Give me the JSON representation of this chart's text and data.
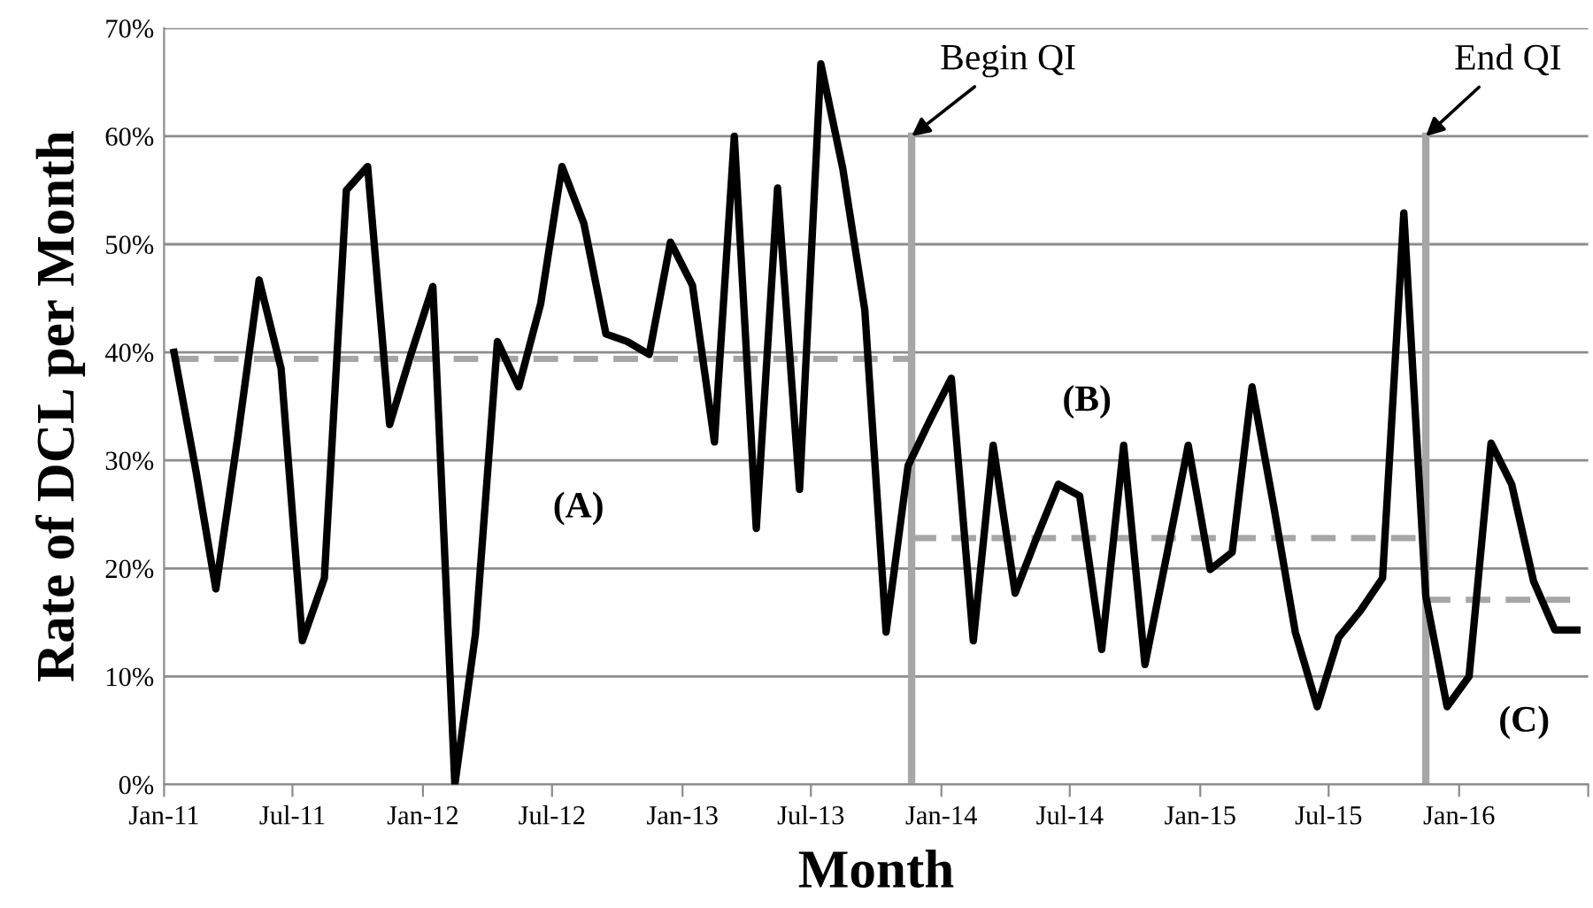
{
  "chart_data": {
    "type": "line",
    "xlabel": "Month",
    "ylabel": "Rate of DCL per Month",
    "xlim": [
      "2011-01-01",
      "2016-07-01"
    ],
    "ylim": [
      0,
      70
    ],
    "xticks": [
      {
        "value": "2011-01-01",
        "label": "Jan-11"
      },
      {
        "value": "2011-07-01",
        "label": "Jul-11"
      },
      {
        "value": "2012-01-01",
        "label": "Jan-12"
      },
      {
        "value": "2012-07-01",
        "label": "Jul-12"
      },
      {
        "value": "2013-01-01",
        "label": "Jan-13"
      },
      {
        "value": "2013-07-01",
        "label": "Jul-13"
      },
      {
        "value": "2014-01-01",
        "label": "Jan-14"
      },
      {
        "value": "2014-07-01",
        "label": "Jul-14"
      },
      {
        "value": "2015-01-01",
        "label": "Jan-15"
      },
      {
        "value": "2015-07-01",
        "label": "Jul-15"
      },
      {
        "value": "2016-01-01",
        "label": "Jan-16"
      },
      {
        "value": "2016-07-01",
        "label": null
      }
    ],
    "yticks": [
      {
        "value": 0,
        "label": "0%"
      },
      {
        "value": 10,
        "label": "10%"
      },
      {
        "value": 20,
        "label": "20%"
      },
      {
        "value": 30,
        "label": "30%"
      },
      {
        "value": 40,
        "label": "40%"
      },
      {
        "value": 50,
        "label": "50%"
      },
      {
        "value": 60,
        "label": "60%"
      },
      {
        "value": 70,
        "label": "70%"
      }
    ],
    "grid": "y",
    "legend": false,
    "marker": "none",
    "series": [
      {
        "color": "#000000",
        "line_style": "solid",
        "x": [
          "2011-01-15",
          "2011-02-15",
          "2011-03-15",
          "2011-04-15",
          "2011-05-15",
          "2011-06-15",
          "2011-07-15",
          "2011-08-15",
          "2011-09-15",
          "2011-10-15",
          "2011-11-15",
          "2011-12-15",
          "2012-01-15",
          "2012-02-15",
          "2012-03-15",
          "2012-04-15",
          "2012-05-15",
          "2012-06-15",
          "2012-07-15",
          "2012-08-15",
          "2012-09-15",
          "2012-10-15",
          "2012-11-15",
          "2012-12-15",
          "2013-01-15",
          "2013-02-15",
          "2013-03-15",
          "2013-04-15",
          "2013-05-15",
          "2013-06-15",
          "2013-07-15",
          "2013-08-15",
          "2013-09-15",
          "2013-10-15",
          "2013-11-15",
          "2013-12-15",
          "2014-01-15",
          "2014-02-15",
          "2014-03-15",
          "2014-04-15",
          "2014-05-15",
          "2014-06-15",
          "2014-07-15",
          "2014-08-15",
          "2014-09-15",
          "2014-10-15",
          "2014-11-15",
          "2014-12-15",
          "2015-01-15",
          "2015-02-15",
          "2015-03-15",
          "2015-04-15",
          "2015-05-15",
          "2015-06-15",
          "2015-07-15",
          "2015-08-15",
          "2015-09-15",
          "2015-10-15",
          "2015-11-15",
          "2015-12-15",
          "2016-01-15",
          "2016-02-15",
          "2016-03-15",
          "2016-04-15",
          "2016-05-15",
          "2016-06-15"
        ],
        "values": [
          40.0,
          29,
          18.1,
          32.2,
          46.7,
          38.5,
          13.3,
          19.1,
          55.0,
          57.2,
          33.3,
          39.8,
          46.1,
          0,
          13.9,
          41.0,
          36.8,
          44.5,
          57.2,
          51.9,
          41.7,
          41.0,
          39.8,
          50.2,
          46.2,
          31.7,
          60.0,
          23.7,
          55.2,
          27.3,
          66.7,
          57.0,
          43.9,
          14.1,
          29.5,
          33.6,
          37.6,
          13.3,
          31.4,
          17.7,
          22.8,
          27.8,
          26.7,
          12.5,
          31.4,
          11.1,
          21.3,
          31.4,
          19.9,
          21.5,
          36.8,
          25.6,
          14.1,
          7.2,
          13.6,
          16.1,
          19.1,
          52.9,
          17.4,
          7.2,
          10.0,
          31.6,
          27.8,
          18.8,
          14.3,
          14.3
        ]
      },
      {
        "color": "#a6a6a6",
        "line_style": "dashed",
        "x": [
          "2011-01-15",
          "2013-11-20"
        ],
        "values": [
          39.4,
          39.4
        ]
      },
      {
        "color": "#a6a6a6",
        "line_style": "dashed",
        "x": [
          "2013-11-20",
          "2015-11-15"
        ],
        "values": [
          22.8,
          22.8
        ]
      },
      {
        "color": "#a6a6a6",
        "line_style": "dashed",
        "x": [
          "2015-11-15",
          "2016-06-15"
        ],
        "values": [
          17.1,
          17.1
        ]
      },
      {
        "color": "#a6a6a6",
        "line_style": "solid",
        "x": [
          "2013-11-20",
          "2013-11-20"
        ],
        "values": [
          0,
          60
        ]
      },
      {
        "color": "#a6a6a6",
        "line_style": "solid",
        "x": [
          "2015-11-15",
          "2015-11-15"
        ],
        "values": [
          0,
          60
        ]
      }
    ],
    "annotations": [
      {
        "text": "Begin QI",
        "x": "2013-11-20",
        "y": 60
      },
      {
        "text": "End QI",
        "x": "2015-11-15",
        "y": 60
      },
      "(A)",
      "(B)",
      "(C)"
    ]
  }
}
